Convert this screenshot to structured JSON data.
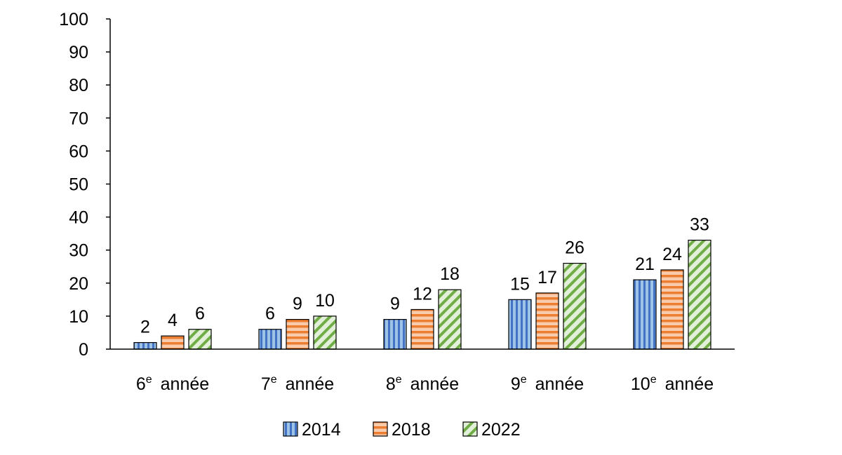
{
  "chart_data": {
    "type": "bar",
    "title": "",
    "xlabel": "",
    "ylabel": "",
    "ylim": [
      0,
      100
    ],
    "yticks": [
      0,
      10,
      20,
      30,
      40,
      50,
      60,
      70,
      80,
      90,
      100
    ],
    "categories": [
      {
        "num": "6",
        "sup": "e",
        "word": "année"
      },
      {
        "num": "7",
        "sup": "e",
        "word": "année"
      },
      {
        "num": "8",
        "sup": "e",
        "word": "année"
      },
      {
        "num": "9",
        "sup": "e",
        "word": "année"
      },
      {
        "num": "10",
        "sup": "e",
        "word": "année"
      }
    ],
    "series": [
      {
        "name": "2014",
        "values": [
          2,
          6,
          9,
          15,
          21
        ],
        "color": "#9DC3E6",
        "stripe": "#4472C4",
        "pattern": "vertical"
      },
      {
        "name": "2018",
        "values": [
          4,
          9,
          12,
          17,
          24
        ],
        "color": "#F8CBAD",
        "stripe": "#ED7D31",
        "pattern": "horizontal"
      },
      {
        "name": "2022",
        "values": [
          6,
          10,
          18,
          26,
          33
        ],
        "color": "#E2F0D9",
        "stripe": "#70AD47",
        "pattern": "diagonal"
      }
    ],
    "legend_position": "bottom"
  }
}
